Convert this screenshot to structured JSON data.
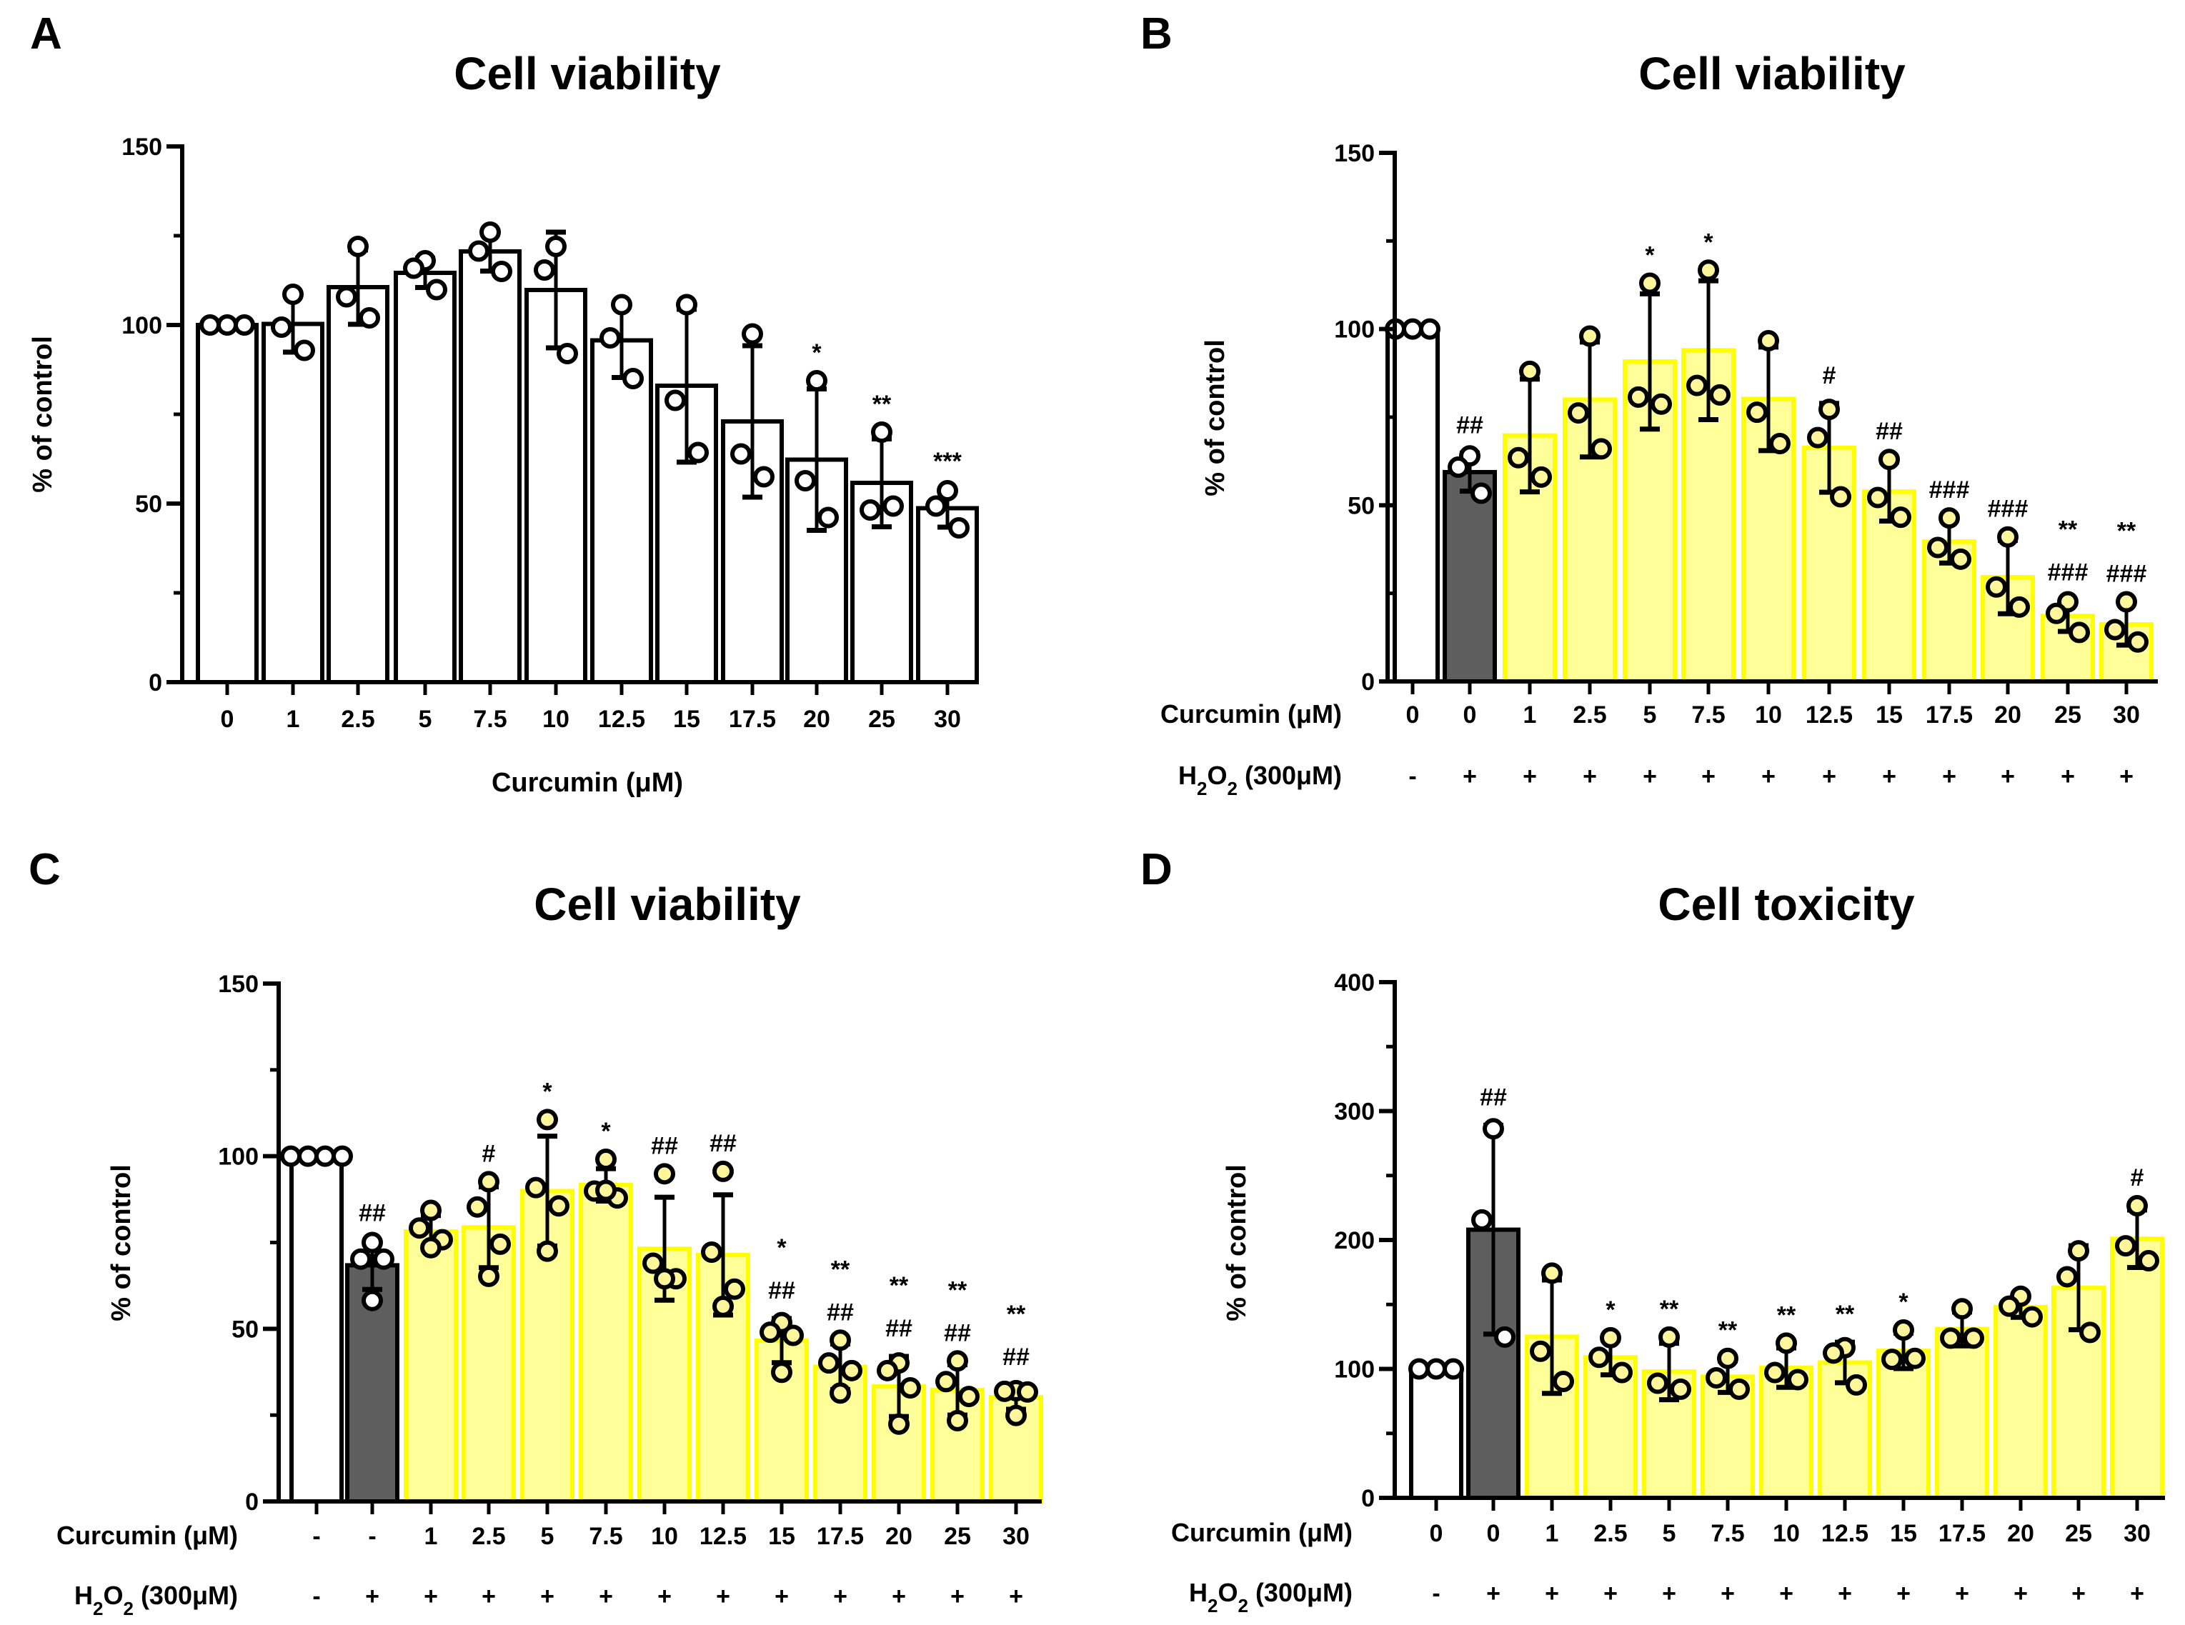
{
  "figure": {
    "panels": [
      "A",
      "B",
      "C",
      "D"
    ]
  },
  "colors": {
    "control_fill": "#ffffff",
    "h2o2_fill": "#5e5e5e",
    "curcumin_fill": "#ffff99",
    "curcumin_border": "#ffff00",
    "dot_fill_control": "#ffffff",
    "dot_fill_yellow": "#fff59a",
    "axis": "#000000"
  },
  "chart_data": [
    {
      "panel": "A",
      "type": "bar",
      "title": "Cell viability",
      "xlabel": "Curcumin (μM)",
      "ylabel": "% of control",
      "ylim": [
        0,
        150
      ],
      "yticks": [
        0,
        50,
        100,
        150
      ],
      "yminor": [
        25,
        75,
        125
      ],
      "categories": [
        "0",
        "1",
        "2.5",
        "5",
        "7.5",
        "10",
        "12.5",
        "15",
        "17.5",
        "20",
        "25",
        "30"
      ],
      "group_style": [
        "white",
        "white",
        "white",
        "white",
        "white",
        "white",
        "white",
        "white",
        "white",
        "white",
        "white",
        "white"
      ],
      "values": [
        100,
        100.3,
        110.6,
        114.6,
        120.6,
        109.8,
        95.7,
        83,
        73,
        62.3,
        55.8,
        48.7
      ],
      "sd": [
        0,
        7.9,
        10.4,
        4.1,
        5.5,
        16.2,
        10.4,
        21.4,
        21.2,
        19.8,
        12.3,
        5.3
      ],
      "points": [
        [
          100,
          100,
          100
        ],
        [
          108.6,
          99.4,
          92.9
        ],
        [
          122,
          107.9,
          102
        ],
        [
          118,
          115.9,
          109.9
        ],
        [
          126,
          120.7,
          115
        ],
        [
          122,
          115.4,
          92
        ],
        [
          105.7,
          96.4,
          85
        ],
        [
          105.7,
          78.9,
          64.3
        ],
        [
          97.5,
          63.9,
          57.5
        ],
        [
          84.4,
          56.4,
          46.1
        ],
        [
          70,
          48.2,
          49.3
        ],
        [
          53.6,
          49.3,
          43.2
        ]
      ],
      "annotations": [
        "",
        "",
        "",
        "",
        "",
        "",
        "",
        "",
        "",
        "*",
        "**",
        "***"
      ],
      "rows": []
    },
    {
      "panel": "B",
      "type": "bar",
      "title": "Cell viability",
      "xlabel": "",
      "ylabel": "% of control",
      "ylim": [
        0,
        150
      ],
      "yticks": [
        0,
        50,
        100,
        150
      ],
      "yminor": [
        25,
        75,
        125
      ],
      "categories": [
        "0",
        "0",
        "1",
        "2.5",
        "5",
        "7.5",
        "10",
        "12.5",
        "15",
        "17.5",
        "20",
        "25",
        "30"
      ],
      "group_style": [
        "white",
        "dark",
        "yellow",
        "yellow",
        "yellow",
        "yellow",
        "yellow",
        "yellow",
        "yellow",
        "yellow",
        "yellow",
        "yellow",
        "yellow"
      ],
      "values": [
        100,
        59.4,
        69.8,
        80,
        90.8,
        94,
        80.2,
        66.3,
        53.9,
        39.7,
        29.6,
        18.6,
        16.2
      ],
      "sd": [
        0,
        5.4,
        16,
        16.3,
        19.2,
        19.7,
        14.7,
        12.6,
        8.4,
        6.1,
        10.4,
        4.4,
        5.9
      ],
      "points": [
        [
          100,
          100,
          100
        ],
        [
          64,
          60.8,
          53.4
        ],
        [
          88,
          63.5,
          58
        ],
        [
          98,
          76.2,
          66
        ],
        [
          113,
          80.7,
          78.7
        ],
        [
          116.7,
          84,
          81.3
        ],
        [
          96.7,
          76.4,
          67.5
        ],
        [
          77.2,
          69.2,
          52.4
        ],
        [
          63,
          52.2,
          46.6
        ],
        [
          46.4,
          38,
          34.7
        ],
        [
          41,
          26.8,
          21.1
        ],
        [
          22.6,
          19.3,
          13.9
        ],
        [
          22.6,
          14.7,
          11.2
        ]
      ],
      "annotations": [
        "",
        "##",
        "",
        "",
        "*",
        "*",
        "",
        "#",
        "##",
        "###",
        "###",
        "**\n###",
        "**\n###"
      ],
      "rows": [
        {
          "label": "Curcumin (μM)",
          "values": [
            "0",
            "0",
            "1",
            "2.5",
            "5",
            "7.5",
            "10",
            "12.5",
            "15",
            "17.5",
            "20",
            "25",
            "30"
          ]
        },
        {
          "label": "H2O2 (300μM)",
          "values": [
            "-",
            "+",
            "+",
            "+",
            "+",
            "+",
            "+",
            "+",
            "+",
            "+",
            "+",
            "+",
            "+"
          ]
        }
      ]
    },
    {
      "panel": "C",
      "type": "bar",
      "title": "Cell viability",
      "xlabel": "",
      "ylabel": "% of control",
      "ylim": [
        0,
        150
      ],
      "yticks": [
        0,
        50,
        100,
        150
      ],
      "yminor": [
        25,
        75,
        125
      ],
      "categories": [
        "-",
        "-",
        "1",
        "2.5",
        "5",
        "7.5",
        "10",
        "12.5",
        "15",
        "17.5",
        "20",
        "25",
        "30"
      ],
      "group_style": [
        "white",
        "dark",
        "yellow",
        "yellow",
        "yellow",
        "yellow",
        "yellow",
        "yellow",
        "yellow",
        "yellow",
        "yellow",
        "yellow",
        "yellow"
      ],
      "values": [
        100,
        68.4,
        78.2,
        79.4,
        89.9,
        91.7,
        73.2,
        71.4,
        46.6,
        39,
        33.3,
        32.3,
        30.2
      ],
      "sd": [
        0,
        7,
        4.6,
        11.7,
        15.9,
        4.7,
        14.9,
        17.4,
        6.4,
        6.6,
        8.7,
        7.3,
        3.5
      ],
      "points": [
        [
          100,
          100,
          100,
          100
        ],
        [
          75,
          70.2,
          70.2,
          58.2
        ],
        [
          84.3,
          79.2,
          75.8,
          73.5
        ],
        [
          92.6,
          85.3,
          74.5,
          65.2
        ],
        [
          110.6,
          90.9,
          85.6,
          72.5
        ],
        [
          99.1,
          89.9,
          87.9,
          90.1
        ],
        [
          94.9,
          69,
          64.5,
          64.5
        ],
        [
          95.6,
          72.2,
          61.5,
          56.5
        ],
        [
          51.8,
          49,
          48.1,
          37.4
        ],
        [
          46.7,
          40.1,
          37.9,
          31.4
        ],
        [
          40.1,
          37.9,
          32.9,
          22.4
        ],
        [
          40.7,
          34.7,
          30.4,
          23.4
        ],
        [
          32.1,
          31.9,
          31.7,
          24.9
        ]
      ],
      "annotations": [
        "",
        "##",
        "",
        "#",
        "*",
        "*",
        "##",
        "##",
        "*\n##",
        "**\n##",
        "**\n##",
        "**\n##",
        "**\n##"
      ],
      "rows": [
        {
          "label": "Curcumin (μM)",
          "values": [
            "-",
            "-",
            "1",
            "2.5",
            "5",
            "7.5",
            "10",
            "12.5",
            "15",
            "17.5",
            "20",
            "25",
            "30"
          ]
        },
        {
          "label": "H2O2 (300μM)",
          "values": [
            "-",
            "+",
            "+",
            "+",
            "+",
            "+",
            "+",
            "+",
            "+",
            "+",
            "+",
            "+",
            "+"
          ]
        }
      ]
    },
    {
      "panel": "D",
      "type": "bar",
      "title": "Cell toxicity",
      "xlabel": "",
      "ylabel": "% of control",
      "ylim": [
        0,
        400
      ],
      "yticks": [
        0,
        100,
        200,
        300,
        400
      ],
      "yminor": [
        50,
        150,
        250,
        350
      ],
      "categories": [
        "0",
        "0",
        "1",
        "2.5",
        "5",
        "7.5",
        "10",
        "12.5",
        "15",
        "17.5",
        "20",
        "25",
        "30"
      ],
      "group_style": [
        "white",
        "dark",
        "yellow",
        "yellow",
        "yellow",
        "yellow",
        "yellow",
        "yellow",
        "yellow",
        "yellow",
        "yellow",
        "yellow",
        "yellow"
      ],
      "values": [
        100,
        208,
        125,
        109,
        98,
        94,
        101,
        105,
        114,
        131,
        148,
        163,
        201
      ],
      "sd": [
        0,
        81,
        44,
        13.6,
        21.9,
        12.2,
        15.3,
        15.7,
        13.7,
        13.1,
        8,
        32.6,
        22.3
      ],
      "points": [
        [
          100,
          100,
          100
        ],
        [
          286.3,
          215.6,
          124.7
        ],
        [
          174.3,
          113.7,
          90.3
        ],
        [
          124.2,
          109,
          97.2
        ],
        [
          124.7,
          88.9,
          84.3
        ],
        [
          108.2,
          93.1,
          84.3
        ],
        [
          120,
          97.2,
          91.7
        ],
        [
          116.5,
          112.3,
          87.6
        ],
        [
          130.2,
          107.4,
          108.2
        ],
        [
          146.7,
          123.9,
          123.9
        ],
        [
          156.4,
          148.7,
          140.4
        ],
        [
          191.6,
          171.5,
          128.3
        ],
        [
          226.6,
          195.5,
          183.9
        ]
      ],
      "annotations": [
        "",
        "##",
        "",
        "*",
        "**",
        "**",
        "**",
        "**",
        "*",
        "",
        "",
        "",
        "#"
      ],
      "rows": [
        {
          "label": "Curcumin (μM)",
          "values": [
            "0",
            "0",
            "1",
            "2.5",
            "5",
            "7.5",
            "10",
            "12.5",
            "15",
            "17.5",
            "20",
            "25",
            "30"
          ]
        },
        {
          "label": "H2O2 (300μM)",
          "values": [
            "-",
            "+",
            "+",
            "+",
            "+",
            "+",
            "+",
            "+",
            "+",
            "+",
            "+",
            "+",
            "+"
          ]
        }
      ]
    }
  ]
}
